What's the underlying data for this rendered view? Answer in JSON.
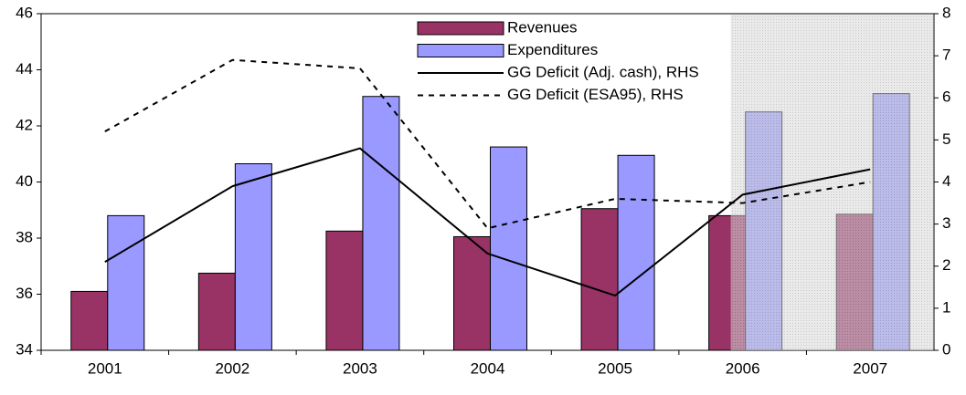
{
  "chart_data": {
    "type": "bar",
    "categories": [
      "2001",
      "2002",
      "2003",
      "2004",
      "2005",
      "2006",
      "2007"
    ],
    "series": [
      {
        "name": "Revenues",
        "type": "bar",
        "color": "#993366",
        "values": [
          36.1,
          36.75,
          38.25,
          38.05,
          39.05,
          38.8,
          38.85
        ]
      },
      {
        "name": "Expenditures",
        "type": "bar",
        "color": "#9999ff",
        "values": [
          38.8,
          40.65,
          43.05,
          41.25,
          40.95,
          42.5,
          43.15
        ]
      },
      {
        "name": "GG Deficit (Adj. cash), RHS",
        "type": "line",
        "axis": "y2",
        "color": "#000000",
        "dash": false,
        "values": [
          2.1,
          3.9,
          4.8,
          2.3,
          1.3,
          3.7,
          4.3
        ]
      },
      {
        "name": "GG Deficit (ESA95), RHS",
        "type": "line",
        "axis": "y2",
        "color": "#000000",
        "dash": true,
        "values": [
          5.2,
          6.9,
          6.7,
          2.9,
          3.6,
          3.5,
          4.0
        ]
      }
    ],
    "ylim": [
      34,
      46
    ],
    "yticks": [
      34,
      36,
      38,
      40,
      42,
      44,
      46
    ],
    "y2lim": [
      0,
      8
    ],
    "y2ticks": [
      0,
      1,
      2,
      3,
      4,
      5,
      6,
      7,
      8
    ]
  }
}
